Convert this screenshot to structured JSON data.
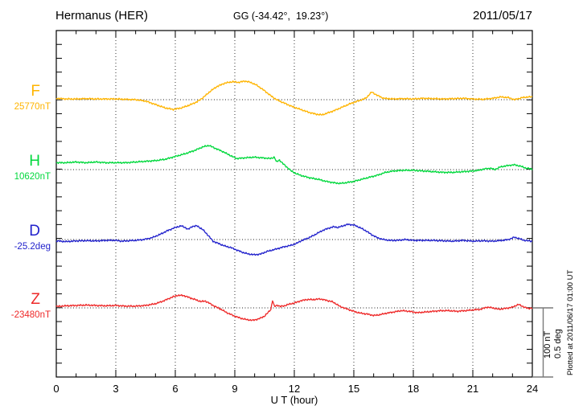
{
  "header": {
    "station": "Hermanus (HER)",
    "coords": "GG (-34.42°,  19.23°)",
    "date": "2011/05/17"
  },
  "xaxis": {
    "label": "U T (hour)"
  },
  "scale_bar": {
    "nt_label": "100 nT",
    "deg_label": "0.5 deg"
  },
  "footer": {
    "plotted_at": "Plotted at 2011/06/17 01:00 UT"
  },
  "chart_data": {
    "type": "line",
    "title": "Hermanus (HER)",
    "subtitle": "GG (-34.42°,  19.23°)",
    "date": "2011/05/17",
    "xlabel": "U T (hour)",
    "xlim": [
      0,
      24
    ],
    "x_major_ticks": [
      0,
      3,
      6,
      9,
      12,
      15,
      18,
      21,
      24
    ],
    "x_minor_tick_step_hours": 1,
    "grid": "vertical dotted lines every 3 h; dotted zero-baseline per trace",
    "legend_position": "left margin, one colored label per trace",
    "scale_bar": {
      "nT": 100,
      "deg": 0.5,
      "note": "bar spans Z baseline to bottom axis"
    },
    "series": [
      {
        "name": "F",
        "baseline_label": "25770nT",
        "unit": "nT",
        "color": "#FFB400",
        "points": [
          [
            0,
            2
          ],
          [
            0.5,
            1
          ],
          [
            1,
            1
          ],
          [
            1.5,
            1.5
          ],
          [
            2,
            1
          ],
          [
            2.5,
            1
          ],
          [
            3,
            1
          ],
          [
            3.5,
            0.5
          ],
          [
            4,
            0
          ],
          [
            4.5,
            -2
          ],
          [
            5,
            -7
          ],
          [
            5.5,
            -12
          ],
          [
            5.9,
            -14
          ],
          [
            6.3,
            -12
          ],
          [
            6.7,
            -8
          ],
          [
            7.1,
            -3
          ],
          [
            7.4,
            3
          ],
          [
            7.8,
            13
          ],
          [
            8.1,
            19
          ],
          [
            8.5,
            24
          ],
          [
            8.9,
            26
          ],
          [
            9.2,
            25
          ],
          [
            9.5,
            27
          ],
          [
            9.8,
            25
          ],
          [
            10.1,
            21
          ],
          [
            10.5,
            13
          ],
          [
            10.8,
            6
          ],
          [
            11.1,
            0
          ],
          [
            11.5,
            -5
          ],
          [
            11.9,
            -10
          ],
          [
            12.3,
            -14
          ],
          [
            12.7,
            -18
          ],
          [
            13.1,
            -21
          ],
          [
            13.4,
            -22
          ],
          [
            13.7,
            -19
          ],
          [
            14,
            -16
          ],
          [
            14.4,
            -11
          ],
          [
            14.8,
            -6
          ],
          [
            15.2,
            -2
          ],
          [
            15.6,
            2
          ],
          [
            15.9,
            11
          ],
          [
            16.2,
            6
          ],
          [
            16.5,
            2
          ],
          [
            17,
            1
          ],
          [
            17.5,
            1.5
          ],
          [
            18,
            1
          ],
          [
            18.5,
            2
          ],
          [
            19,
            1.5
          ],
          [
            19.5,
            1
          ],
          [
            20,
            1.5
          ],
          [
            20.5,
            2
          ],
          [
            21,
            1
          ],
          [
            21.5,
            0.5
          ],
          [
            22,
            2
          ],
          [
            22.4,
            4
          ],
          [
            22.8,
            3
          ],
          [
            23.1,
            0
          ],
          [
            23.5,
            3
          ],
          [
            23.8,
            4
          ],
          [
            24,
            4
          ]
        ]
      },
      {
        "name": "H",
        "baseline_label": "10620nT",
        "unit": "nT",
        "color": "#00D83C",
        "points": [
          [
            0,
            10
          ],
          [
            0.5,
            10
          ],
          [
            1,
            11
          ],
          [
            1.5,
            10
          ],
          [
            2,
            11
          ],
          [
            2.5,
            10
          ],
          [
            3,
            10
          ],
          [
            3.5,
            10
          ],
          [
            4,
            11
          ],
          [
            4.5,
            12
          ],
          [
            5,
            13
          ],
          [
            5.5,
            15
          ],
          [
            6,
            19
          ],
          [
            6.5,
            23
          ],
          [
            7,
            28
          ],
          [
            7.4,
            33
          ],
          [
            7.7,
            35
          ],
          [
            8,
            31
          ],
          [
            8.4,
            26
          ],
          [
            8.8,
            20
          ],
          [
            9.1,
            16
          ],
          [
            9.5,
            17
          ],
          [
            10,
            18
          ],
          [
            10.4,
            17
          ],
          [
            10.8,
            16
          ],
          [
            11,
            18
          ],
          [
            11.1,
            11
          ],
          [
            11.25,
            14
          ],
          [
            11.45,
            8
          ],
          [
            11.65,
            3
          ],
          [
            11.85,
            -2
          ],
          [
            12.1,
            -6
          ],
          [
            12.4,
            -9
          ],
          [
            12.8,
            -12
          ],
          [
            13.2,
            -14
          ],
          [
            13.6,
            -17
          ],
          [
            14,
            -19
          ],
          [
            14.3,
            -20
          ],
          [
            14.6,
            -19
          ],
          [
            15,
            -17
          ],
          [
            15.4,
            -14
          ],
          [
            15.8,
            -11
          ],
          [
            16.2,
            -8
          ],
          [
            16.6,
            -4
          ],
          [
            17,
            -2
          ],
          [
            17.5,
            -1
          ],
          [
            18,
            -1
          ],
          [
            18.5,
            -2
          ],
          [
            19,
            -3
          ],
          [
            19.5,
            -4
          ],
          [
            20,
            -4
          ],
          [
            20.5,
            -3
          ],
          [
            21,
            -2
          ],
          [
            21.3,
            -1
          ],
          [
            21.6,
            1
          ],
          [
            21.9,
            2
          ],
          [
            22.1,
            0
          ],
          [
            22.4,
            4
          ],
          [
            22.8,
            6
          ],
          [
            23.1,
            7
          ],
          [
            23.4,
            5
          ],
          [
            23.7,
            2
          ],
          [
            24,
            1
          ]
        ]
      },
      {
        "name": "D",
        "baseline_label": "-25.2deg",
        "unit": "deg",
        "color": "#2222CC",
        "points": [
          [
            0,
            -0.01
          ],
          [
            0.5,
            -0.015
          ],
          [
            1,
            -0.01
          ],
          [
            1.5,
            -0.008
          ],
          [
            2,
            -0.01
          ],
          [
            2.5,
            -0.006
          ],
          [
            3,
            -0.006
          ],
          [
            3.3,
            -0.012
          ],
          [
            3.7,
            -0.008
          ],
          [
            4,
            -0.006
          ],
          [
            4.4,
            0
          ],
          [
            4.8,
            0.012
          ],
          [
            5.2,
            0.035
          ],
          [
            5.6,
            0.064
          ],
          [
            6,
            0.087
          ],
          [
            6.3,
            0.099
          ],
          [
            6.5,
            0.087
          ],
          [
            6.65,
            0.073
          ],
          [
            6.85,
            0.095
          ],
          [
            7.1,
            0.099
          ],
          [
            7.4,
            0.07
          ],
          [
            7.7,
            0.023
          ],
          [
            7.9,
            -0.012
          ],
          [
            8.2,
            -0.03
          ],
          [
            8.5,
            -0.047
          ],
          [
            8.8,
            -0.058
          ],
          [
            9.1,
            -0.076
          ],
          [
            9.4,
            -0.093
          ],
          [
            9.7,
            -0.105
          ],
          [
            10,
            -0.11
          ],
          [
            10.3,
            -0.105
          ],
          [
            10.6,
            -0.087
          ],
          [
            10.9,
            -0.076
          ],
          [
            11.2,
            -0.064
          ],
          [
            11.5,
            -0.052
          ],
          [
            11.8,
            -0.043
          ],
          [
            12.1,
            -0.029
          ],
          [
            12.3,
            -0.012
          ],
          [
            12.5,
            0
          ],
          [
            12.8,
            0.017
          ],
          [
            13.1,
            0.04
          ],
          [
            13.4,
            0.064
          ],
          [
            13.7,
            0.081
          ],
          [
            14,
            0.093
          ],
          [
            14.2,
            0.087
          ],
          [
            14.45,
            0.099
          ],
          [
            14.7,
            0.11
          ],
          [
            15,
            0.105
          ],
          [
            15.3,
            0.087
          ],
          [
            15.6,
            0.064
          ],
          [
            15.9,
            0.035
          ],
          [
            16.2,
            0.012
          ],
          [
            16.5,
            0
          ],
          [
            16.8,
            -0.006
          ],
          [
            17.2,
            -0.006
          ],
          [
            17.6,
            0
          ],
          [
            18,
            -0.006
          ],
          [
            18.5,
            -0.006
          ],
          [
            19,
            -0.006
          ],
          [
            19.5,
            -0.009
          ],
          [
            20,
            -0.012
          ],
          [
            20.5,
            -0.006
          ],
          [
            21,
            -0.012
          ],
          [
            21.5,
            -0.009
          ],
          [
            22,
            -0.012
          ],
          [
            22.5,
            -0.006
          ],
          [
            22.8,
            0
          ],
          [
            23.1,
            0.017
          ],
          [
            23.35,
            0.006
          ],
          [
            23.6,
            -0.006
          ],
          [
            24,
            -0.012
          ]
        ]
      },
      {
        "name": "Z",
        "baseline_label": "-23480nT",
        "unit": "nT",
        "color": "#EE2929",
        "points": [
          [
            0,
            2
          ],
          [
            0.5,
            3
          ],
          [
            1,
            3.5
          ],
          [
            1.5,
            4
          ],
          [
            2,
            3.5
          ],
          [
            2.5,
            3
          ],
          [
            3,
            3.5
          ],
          [
            3.5,
            2.5
          ],
          [
            4,
            2.5
          ],
          [
            4.5,
            3.5
          ],
          [
            5,
            6
          ],
          [
            5.4,
            10
          ],
          [
            5.8,
            15
          ],
          [
            6.1,
            18
          ],
          [
            6.4,
            18
          ],
          [
            6.7,
            15
          ],
          [
            7,
            12
          ],
          [
            7.3,
            9
          ],
          [
            7.5,
            10
          ],
          [
            7.7,
            7
          ],
          [
            8,
            2
          ],
          [
            8.3,
            -2
          ],
          [
            8.6,
            -7
          ],
          [
            9,
            -12
          ],
          [
            9.3,
            -15
          ],
          [
            9.6,
            -17
          ],
          [
            9.9,
            -18
          ],
          [
            10.2,
            -16
          ],
          [
            10.5,
            -12
          ],
          [
            10.7,
            -6
          ],
          [
            10.82,
            -2
          ],
          [
            10.9,
            11
          ],
          [
            11,
            2
          ],
          [
            11.15,
            4
          ],
          [
            11.3,
            2
          ],
          [
            11.5,
            3
          ],
          [
            11.7,
            5
          ],
          [
            12,
            7
          ],
          [
            12.3,
            10
          ],
          [
            12.6,
            12
          ],
          [
            13,
            12
          ],
          [
            13.3,
            13
          ],
          [
            13.6,
            11
          ],
          [
            13.9,
            9
          ],
          [
            14.1,
            6
          ],
          [
            14.3,
            2
          ],
          [
            14.5,
            0
          ],
          [
            14.8,
            -3
          ],
          [
            15.1,
            -6
          ],
          [
            15.4,
            -8
          ],
          [
            15.7,
            -9
          ],
          [
            16,
            -11
          ],
          [
            16.3,
            -10
          ],
          [
            16.6,
            -8
          ],
          [
            17,
            -6
          ],
          [
            17.4,
            -4
          ],
          [
            17.8,
            -5
          ],
          [
            18.2,
            -7
          ],
          [
            18.6,
            -6
          ],
          [
            19,
            -5
          ],
          [
            19.4,
            -4
          ],
          [
            19.8,
            -4
          ],
          [
            20.2,
            -5
          ],
          [
            20.6,
            -4
          ],
          [
            21,
            -3
          ],
          [
            21.4,
            -2
          ],
          [
            21.7,
            1
          ],
          [
            22,
            0
          ],
          [
            22.3,
            -2
          ],
          [
            22.6,
            -1
          ],
          [
            23,
            1
          ],
          [
            23.3,
            5
          ],
          [
            23.6,
            1
          ],
          [
            23.8,
            -1
          ],
          [
            24,
            0
          ]
        ]
      }
    ],
    "plotted_at": "Plotted at 2011/06/17 01:00 UT"
  }
}
